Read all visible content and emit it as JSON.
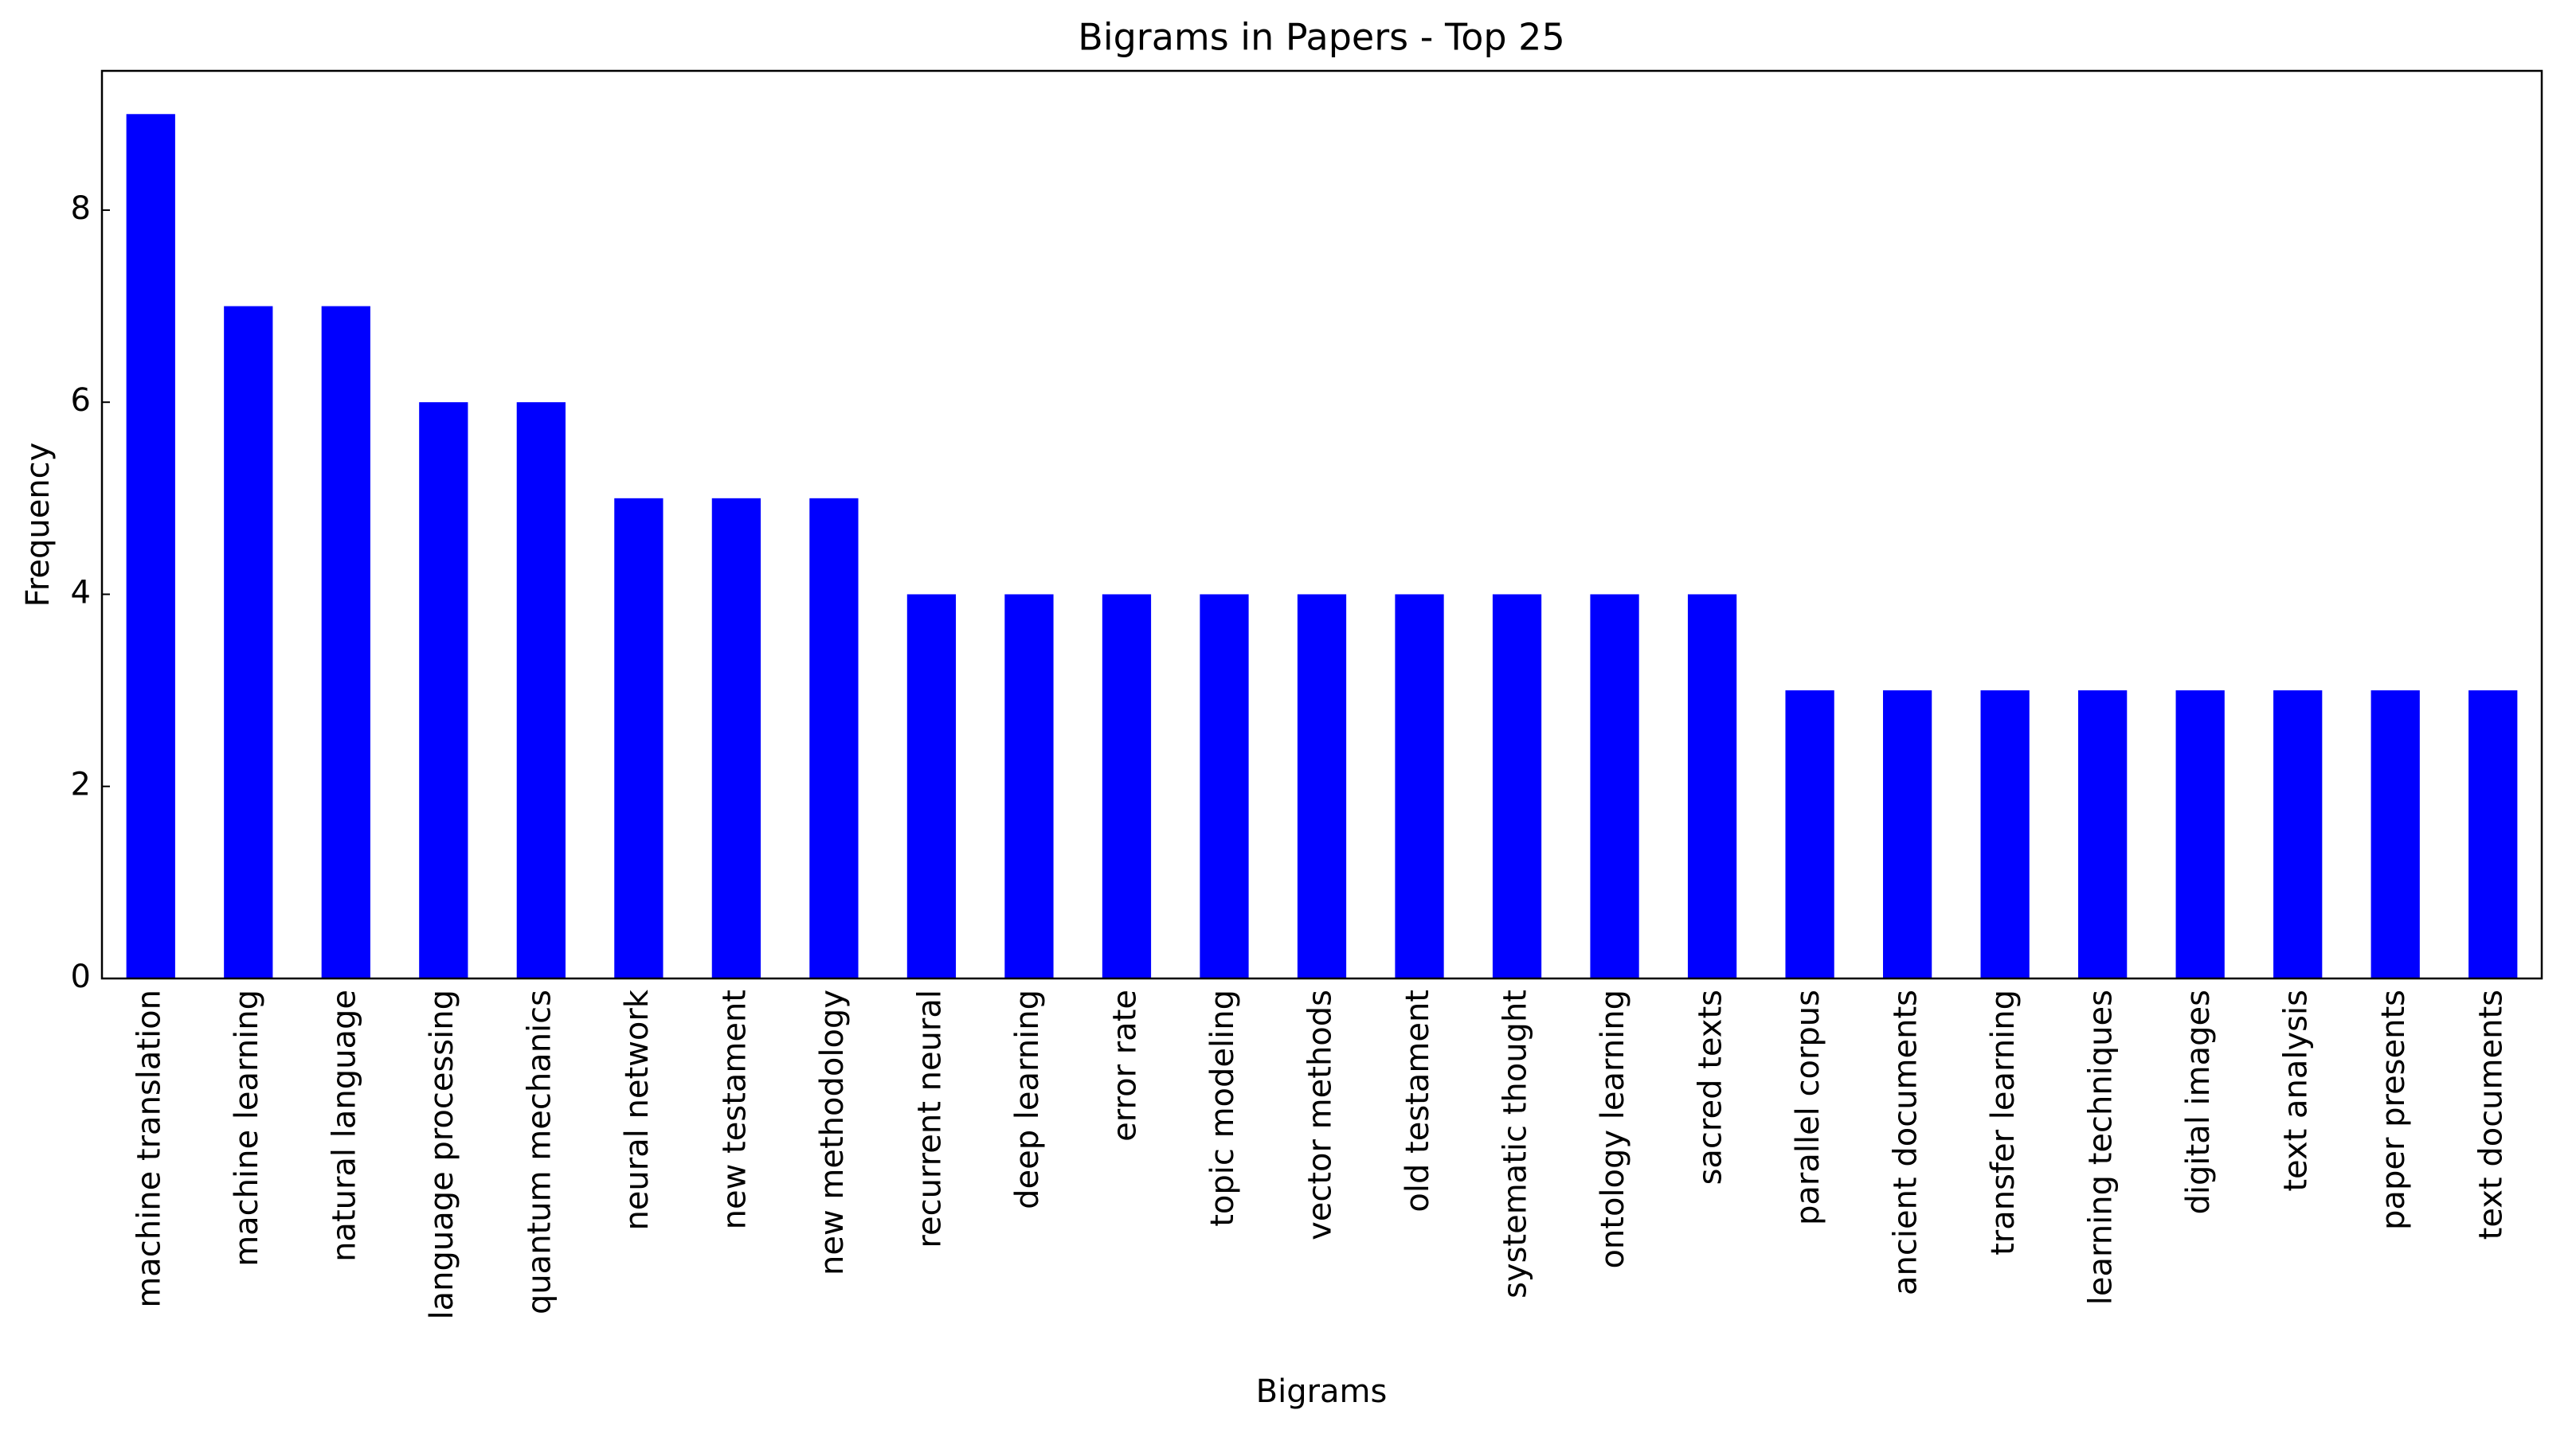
{
  "chart_data": {
    "type": "bar",
    "title": "Bigrams in Papers - Top 25",
    "x_label": "Bigrams",
    "y_label": "Frequency",
    "categories": [
      "machine translation",
      "machine learning",
      "natural language",
      "language processing",
      "quantum mechanics",
      "neural network",
      "new testament",
      "new methodology",
      "recurrent neural",
      "deep learning",
      "error rate",
      "topic modeling",
      "vector methods",
      "old testament",
      "systematic thought",
      "ontology learning",
      "sacred texts",
      "parallel corpus",
      "ancient documents",
      "transfer learning",
      "learning techniques",
      "digital images",
      "text analysis",
      "paper presents",
      "text documents"
    ],
    "values": [
      9,
      7,
      7,
      6,
      6,
      5,
      5,
      5,
      4,
      4,
      4,
      4,
      4,
      4,
      4,
      4,
      4,
      3,
      3,
      3,
      3,
      3,
      3,
      3,
      3
    ],
    "color": "#0000ff",
    "ylim": [
      0,
      9.45
    ],
    "yticks": [
      0,
      2,
      4,
      6,
      8
    ],
    "grid": false
  }
}
